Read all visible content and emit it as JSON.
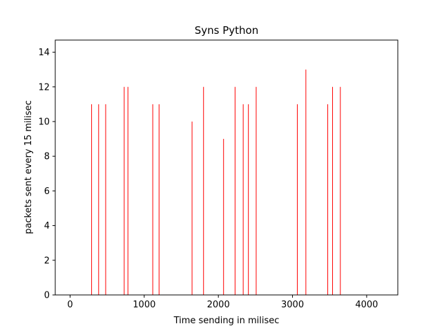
{
  "chart_data": {
    "type": "bar",
    "title": "Syns Python",
    "xlabel": "Time sending in milisec",
    "ylabel": "packets sent every 15 milisec",
    "xlim": [
      -200,
      4420
    ],
    "ylim": [
      0,
      14.7
    ],
    "xticks": [
      0,
      1000,
      2000,
      3000,
      4000
    ],
    "yticks": [
      0,
      2,
      4,
      6,
      8,
      10,
      12,
      14
    ],
    "grid": false,
    "bar_color": "#ff0000",
    "bar_width": 5,
    "x": [
      290,
      385,
      480,
      730,
      780,
      1115,
      1200,
      1645,
      1800,
      2070,
      2225,
      2335,
      2405,
      2510,
      3065,
      3180,
      3475,
      3540,
      3645
    ],
    "values": [
      11,
      11,
      11,
      12,
      12,
      11,
      11,
      10,
      12,
      9,
      12,
      11,
      11,
      12,
      11,
      13,
      11,
      12,
      12
    ]
  }
}
